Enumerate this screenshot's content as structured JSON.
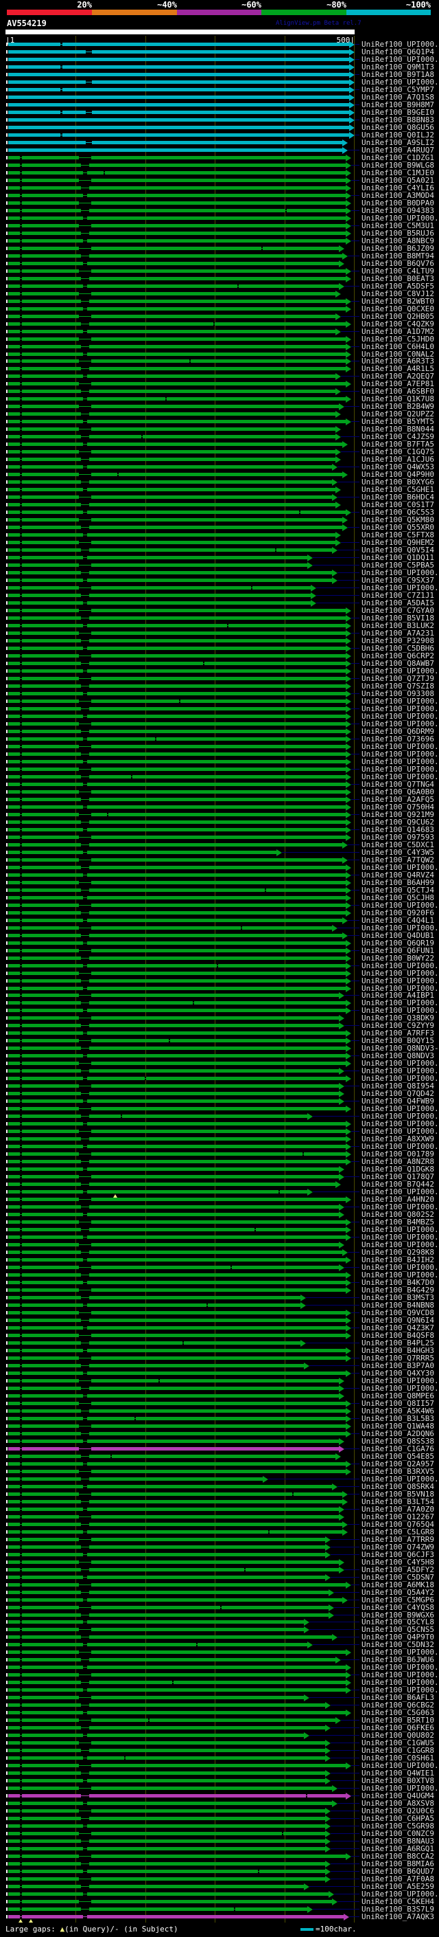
{
  "header": {
    "query_label": "AV554219",
    "watermark": "AlignView.pm Beta rel.7"
  },
  "ruler": {
    "start_label": "|1",
    "end_label": "500|"
  },
  "legend": {
    "large_gaps_prefix": "Large gaps: ",
    "query_gap_symbol": "▲",
    "large_gaps_suffix": "(in Query)/- (in Subject)",
    "scale_text": "=100char."
  },
  "colors": {
    "background": "#000000",
    "ruler": "#ffffff",
    "grid": "#4a4a00",
    "cyan": "#00b4c4",
    "green": "#00a01c",
    "magenta": "#b43cb4",
    "leader": "#000070",
    "label_text": "#dcdcdc",
    "watermark_text": "#1414aa",
    "gap_triangle": "#f0f080"
  },
  "chart_data": {
    "type": "bar",
    "orientation": "horizontal",
    "title": "AV554219",
    "xlabel": "",
    "ylabel": "",
    "x_axis": {
      "start": 1,
      "end": 500,
      "ticks": [
        100,
        200,
        300,
        400,
        500
      ]
    },
    "score_key": {
      "segments": [
        {
          "label": "20%",
          "color": "#ee1c2e"
        },
        {
          "label": "~40%",
          "color": "#e07818"
        },
        {
          "label": "~60%",
          "color": "#a028a0"
        },
        {
          "label": "~80%",
          "color": "#00a41e"
        },
        {
          "label": "~100%",
          "color": "#00b5c5"
        }
      ]
    },
    "id_prefix": "UniRef100_",
    "rows": [
      {
        "l": "UPI000..",
        "c": "c",
        "e": 1
      },
      {
        "l": "Q6Q1P4",
        "c": "c",
        "e": 1
      },
      {
        "l": "UPI000..",
        "c": "c",
        "e": 1
      },
      {
        "l": "Q9M1T3",
        "c": "c",
        "e": 1
      },
      {
        "l": "B9T1A8",
        "c": "c",
        "e": 1
      },
      {
        "l": "UPI000..",
        "c": "c",
        "e": 1
      },
      {
        "l": "C5YMP7",
        "c": "c",
        "e": 1
      },
      {
        "l": "A7Q1S8",
        "c": "c",
        "e": 1
      },
      {
        "l": "B9H8M7",
        "c": "c",
        "e": 1
      },
      {
        "l": "B9GEI0",
        "c": "c",
        "e": 1
      },
      {
        "l": "B8BN83",
        "c": "c",
        "e": 1
      },
      {
        "l": "Q8GU56",
        "c": "c",
        "e": 1
      },
      {
        "l": "Q0ILJ2",
        "c": "c",
        "e": 1
      },
      {
        "l": "A9SLI2",
        "c": "c",
        "e": 0.98
      },
      {
        "l": "A4RUQ7",
        "c": "c",
        "e": 0.98
      },
      {
        "l": "C1DZG1"
      },
      {
        "l": "B9WLG8"
      },
      {
        "l": "C1MJE0"
      },
      {
        "l": "Q5A021"
      },
      {
        "l": "C4YLI6"
      },
      {
        "l": "A3MOD4"
      },
      {
        "l": "B0DPA0"
      },
      {
        "l": "O94383"
      },
      {
        "l": "UPI000.."
      },
      {
        "l": "C5M3U1"
      },
      {
        "l": "B5RUJ6"
      },
      {
        "l": "A8NBC9"
      },
      {
        "l": "B6JZ09",
        "e": 0.97
      },
      {
        "l": "B8MT94",
        "e": 0.98
      },
      {
        "l": "B6QV76",
        "e": 0.97
      },
      {
        "l": "C4LTU9"
      },
      {
        "l": "B0EAT3"
      },
      {
        "l": "A5DSF5",
        "e": 0.97
      },
      {
        "l": "C8VJ12",
        "e": 0.96
      },
      {
        "l": "B2WBT0"
      },
      {
        "l": "Q0CXE0"
      },
      {
        "l": "Q2HB05",
        "e": 0.96
      },
      {
        "l": "C4QZK9"
      },
      {
        "l": "A1D7M2",
        "e": 0.96
      },
      {
        "l": "C5JHD0"
      },
      {
        "l": "C6H4L0"
      },
      {
        "l": "C0NAL2"
      },
      {
        "l": "A6R3T3"
      },
      {
        "l": "A4R1L5"
      },
      {
        "l": "A2QEQ7",
        "e": 0.96
      },
      {
        "l": "A7EP81"
      },
      {
        "l": "A6SBF0",
        "e": 0.96
      },
      {
        "l": "Q1K7U8"
      },
      {
        "l": "B2B4W9",
        "e": 0.97
      },
      {
        "l": "Q2UPZ2",
        "e": 0.96
      },
      {
        "l": "B5YMT5"
      },
      {
        "l": "B8N044",
        "e": 0.96
      },
      {
        "l": "C4JZS9",
        "e": 0.96
      },
      {
        "l": "B7FTA5",
        "e": 0.98
      },
      {
        "l": "C1GQ75",
        "e": 0.96
      },
      {
        "l": "A1CJU6",
        "e": 0.96
      },
      {
        "l": "Q4WX53",
        "e": 0.95
      },
      {
        "l": "Q4P9H0",
        "e": 0.98
      },
      {
        "l": "B0XYG6",
        "e": 0.95
      },
      {
        "l": "C5GHE1",
        "e": 0.96
      },
      {
        "l": "B6HDC4",
        "e": 0.95
      },
      {
        "l": "C0S1T7",
        "e": 0.96
      },
      {
        "l": "Q6C5S3"
      },
      {
        "l": "Q5KM80",
        "e": 0.98
      },
      {
        "l": "Q55XR0",
        "e": 0.98
      },
      {
        "l": "C5FTX8",
        "e": 0.96
      },
      {
        "l": "Q9HEM2",
        "e": 0.96
      },
      {
        "l": "Q0V5I4",
        "e": 0.95
      },
      {
        "l": "Q1DQ11",
        "e": 0.88
      },
      {
        "l": "C5PBA5",
        "e": 0.88
      },
      {
        "l": "UPI000..",
        "e": 0.95
      },
      {
        "l": "C9SX37",
        "e": 0.95
      },
      {
        "l": "UPI000..",
        "e": 0.89
      },
      {
        "l": "C7Z1J1",
        "e": 0.89
      },
      {
        "l": "A5DAI5",
        "e": 0.89
      },
      {
        "l": "C7GYA0"
      },
      {
        "l": "B5VI18"
      },
      {
        "l": "B3LUK2"
      },
      {
        "l": "A7A231"
      },
      {
        "l": "P32908"
      },
      {
        "l": "C5DBH6"
      },
      {
        "l": "Q6CRP2"
      },
      {
        "l": "Q8AWB7"
      },
      {
        "l": "UPI000.."
      },
      {
        "l": "Q7ZTJ9"
      },
      {
        "l": "Q7SZI8"
      },
      {
        "l": "O93308"
      },
      {
        "l": "UPI000.."
      },
      {
        "l": "UPI000.."
      },
      {
        "l": "UPI000.."
      },
      {
        "l": "UPI000.."
      },
      {
        "l": "Q6DRM9"
      },
      {
        "l": "O73696"
      },
      {
        "l": "UPI000.."
      },
      {
        "l": "UPI000.."
      },
      {
        "l": "UPI000.."
      },
      {
        "l": "UPI000.."
      },
      {
        "l": "UPI000.."
      },
      {
        "l": "Q7TNG4"
      },
      {
        "l": "Q6A0B0"
      },
      {
        "l": "A2AFQ5"
      },
      {
        "l": "Q750H4"
      },
      {
        "l": "Q921M9"
      },
      {
        "l": "Q9CU62"
      },
      {
        "l": "Q14683"
      },
      {
        "l": "O97593"
      },
      {
        "l": "C5DXC1",
        "e": 0.98
      },
      {
        "l": "C4Y3W5",
        "e": 0.79
      },
      {
        "l": "A7TQW2",
        "e": 0.98
      },
      {
        "l": "UPI000.."
      },
      {
        "l": "Q4RVZ4"
      },
      {
        "l": "B6AH99"
      },
      {
        "l": "Q5CTJ4"
      },
      {
        "l": "Q5CJH8"
      },
      {
        "l": "UPI000.."
      },
      {
        "l": "Q920F6"
      },
      {
        "l": "C4Q4L1",
        "e": 0.98
      },
      {
        "l": "UPI000..",
        "e": 0.95
      },
      {
        "l": "Q4DUB1",
        "e": 0.98
      },
      {
        "l": "Q6QR19"
      },
      {
        "l": "Q6FUN1"
      },
      {
        "l": "B0WY22"
      },
      {
        "l": "UPI000.."
      },
      {
        "l": "UPI000.."
      },
      {
        "l": "UPI000.."
      },
      {
        "l": "UPI000.."
      },
      {
        "l": "A4IBP1",
        "e": 0.97
      },
      {
        "l": "UPI000.."
      },
      {
        "l": "UPI000.."
      },
      {
        "l": "Q38DK9",
        "e": 0.97
      },
      {
        "l": "C9ZYY9",
        "e": 0.97
      },
      {
        "l": "A7RFF3"
      },
      {
        "l": "B0QY15"
      },
      {
        "l": "Q8NDV3-3"
      },
      {
        "l": "Q8NDV3"
      },
      {
        "l": "UPI000.."
      },
      {
        "l": "UPI000..",
        "e": 0.97
      },
      {
        "l": "UPI000.."
      },
      {
        "l": "Q8I954",
        "e": 0.97
      },
      {
        "l": "Q7QD42",
        "e": 0.97
      },
      {
        "l": "Q4FWB9",
        "e": 0.97
      },
      {
        "l": "UPI000.."
      },
      {
        "l": "UPI000..",
        "e": 0.88
      },
      {
        "l": "UPI000.."
      },
      {
        "l": "UPI000.."
      },
      {
        "l": "A8XXW9"
      },
      {
        "l": "UPI000.."
      },
      {
        "l": "O01789"
      },
      {
        "l": "A8NZR8"
      },
      {
        "l": "Q1DGK8",
        "e": 0.97
      },
      {
        "l": "Q178Q7",
        "e": 0.97
      },
      {
        "l": "B7Q442",
        "e": 0.96
      },
      {
        "l": "UPI000..",
        "e": 0.88,
        "t": [
          168
        ]
      },
      {
        "l": "A4HN20"
      },
      {
        "l": "UPI000..",
        "e": 0.97
      },
      {
        "l": "Q802S2",
        "e": 0.97
      },
      {
        "l": "B4MBZ5"
      },
      {
        "l": "UPI000.."
      },
      {
        "l": "UPI000.."
      },
      {
        "l": "UPI000..",
        "e": 0.97
      },
      {
        "l": "Q298K8",
        "e": 0.98
      },
      {
        "l": "B4JIH2"
      },
      {
        "l": "UPI000..",
        "e": 0.97
      },
      {
        "l": "UPI000.."
      },
      {
        "l": "B4K7D0"
      },
      {
        "l": "B4G429"
      },
      {
        "l": "B3MST3",
        "e": 0.86
      },
      {
        "l": "B4NBN8",
        "e": 0.86
      },
      {
        "l": "Q9VCD8"
      },
      {
        "l": "Q9N6I4"
      },
      {
        "l": "Q4Z3K7"
      },
      {
        "l": "B4QSF8"
      },
      {
        "l": "B4PL25",
        "e": 0.86
      },
      {
        "l": "B4HGH3"
      },
      {
        "l": "Q7RRR5"
      },
      {
        "l": "B3P7A0",
        "e": 0.87
      },
      {
        "l": "Q4XY30"
      },
      {
        "l": "UPI000..",
        "e": 0.97
      },
      {
        "l": "UPI000..",
        "e": 0.97
      },
      {
        "l": "Q8MPE6",
        "e": 0.97
      },
      {
        "l": "Q8II57"
      },
      {
        "l": "A5K4W6"
      },
      {
        "l": "B3L5B3"
      },
      {
        "l": "Q1WA48"
      },
      {
        "l": "A2DQN6"
      },
      {
        "l": "Q8SS38",
        "e": 0.97
      },
      {
        "l": "C1GA76",
        "c": "m",
        "e": 0.97
      },
      {
        "l": "Q54E85",
        "e": 0.96
      },
      {
        "l": "Q2A957"
      },
      {
        "l": "B3RXV5"
      },
      {
        "l": "UPI000..",
        "e": 0.75
      },
      {
        "l": "Q8SRK4",
        "e": 0.95
      },
      {
        "l": "B5VN18",
        "e": 0.98
      },
      {
        "l": "B3LT54",
        "e": 0.98
      },
      {
        "l": "A7A0Z0",
        "e": 0.97
      },
      {
        "l": "Q12267",
        "e": 0.97
      },
      {
        "l": "Q765Q4",
        "e": 0.98
      },
      {
        "l": "C5LGR8",
        "e": 0.98
      },
      {
        "l": "A7TRR9",
        "e": 0.93
      },
      {
        "l": "Q74ZW9",
        "e": 0.93
      },
      {
        "l": "Q6CJF3",
        "e": 0.93
      },
      {
        "l": "C4Y5H8",
        "e": 0.97
      },
      {
        "l": "A5DFY2",
        "e": 0.97
      },
      {
        "l": "C5DSN7",
        "e": 0.93
      },
      {
        "l": "A6MK18"
      },
      {
        "l": "Q5A4Y2",
        "e": 0.94
      },
      {
        "l": "C5MGP6",
        "e": 0.98
      },
      {
        "l": "C4YQS8",
        "e": 0.94
      },
      {
        "l": "B9WGX6",
        "e": 0.94
      },
      {
        "l": "Q5CYL8",
        "e": 0.87
      },
      {
        "l": "Q5CNS5",
        "e": 0.87
      },
      {
        "l": "Q4P9T0",
        "e": 0.95
      },
      {
        "l": "C5DN32",
        "e": 0.88
      },
      {
        "l": "UPI000.."
      },
      {
        "l": "B6JWU6",
        "e": 0.96
      },
      {
        "l": "UPI000.."
      },
      {
        "l": "UPI000.."
      },
      {
        "l": "UPI000.."
      },
      {
        "l": "UPI000.."
      },
      {
        "l": "B6AFL3",
        "e": 0.87
      },
      {
        "l": "Q6CBG2",
        "e": 0.93
      },
      {
        "l": "C5G063"
      },
      {
        "l": "B5RT10",
        "e": 0.96
      },
      {
        "l": "Q6FKE6",
        "e": 0.93
      },
      {
        "l": "Q0U802",
        "e": 0.87
      },
      {
        "l": "C1GWU5",
        "e": 0.93
      },
      {
        "l": "C1GGR8",
        "e": 0.93
      },
      {
        "l": "C0SH61",
        "e": 0.93
      },
      {
        "l": "UPI000.."
      },
      {
        "l": "Q4WIE1",
        "e": 0.93
      },
      {
        "l": "B0XTV8",
        "e": 0.93
      },
      {
        "l": "UPI000..",
        "e": 0.95
      },
      {
        "l": "Q4UGM4",
        "c": "m"
      },
      {
        "l": "A8XSV8",
        "e": 0.95
      },
      {
        "l": "Q2U0C6",
        "e": 0.93
      },
      {
        "l": "C6HPA5",
        "e": 0.93
      },
      {
        "l": "C5GR98",
        "e": 0.93
      },
      {
        "l": "C0NZC9",
        "e": 0.93
      },
      {
        "l": "B8NAU3",
        "e": 0.93
      },
      {
        "l": "A6RGQ1",
        "e": 0.93
      },
      {
        "l": "B8CCA2"
      },
      {
        "l": "B8MIA6",
        "e": 0.93
      },
      {
        "l": "B6QUD7",
        "e": 0.93
      },
      {
        "l": "A7F0A8",
        "e": 0.93
      },
      {
        "l": "A5E259",
        "e": 0.87
      },
      {
        "l": "UPI000..",
        "e": 0.94
      },
      {
        "l": "C5KEH4",
        "e": 0.95
      },
      {
        "l": "B3S7L9",
        "e": 0.88
      },
      {
        "l": "A7AQK3",
        "c": "m",
        "e": 0.985,
        "t": [
          30,
          45
        ]
      }
    ]
  }
}
